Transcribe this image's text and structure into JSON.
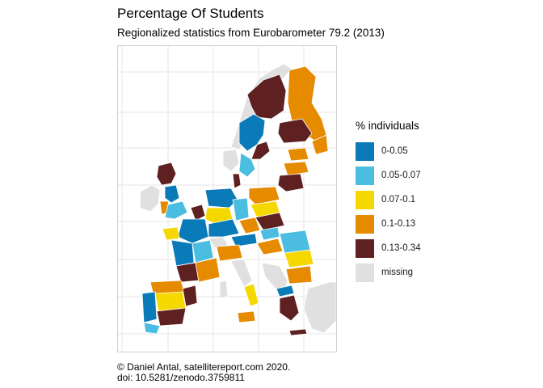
{
  "title": "Percentage Of Students",
  "subtitle": "Regionalized statistics from Eurobarometer 79.2 (2013)",
  "legend": {
    "title": "% individuals",
    "items": [
      {
        "label": "0-0.05",
        "color": "#0a7bb8"
      },
      {
        "label": "0.05-0.07",
        "color": "#4bbde0"
      },
      {
        "label": "0.07-0.1",
        "color": "#f5d800"
      },
      {
        "label": "0.1-0.13",
        "color": "#e68a00"
      },
      {
        "label": "0.13-0.34",
        "color": "#5e2020"
      },
      {
        "label": "missing",
        "color": "#e0e0e0"
      }
    ]
  },
  "caption": {
    "line1": "© Daniel Antal, satellitereport.com 2020.",
    "line2": "doi: 10.5281/zenodo.3759811"
  },
  "map_colors": {
    "grid": "#e6e6e6",
    "border": "#ffffff"
  },
  "regions": [
    {
      "name": "Iceland / Norway west",
      "class": "missing"
    },
    {
      "name": "Northern Finland",
      "class": "0.1-0.13"
    },
    {
      "name": "Northern Sweden",
      "class": "0.13-0.34"
    },
    {
      "name": "Central Sweden",
      "class": "0-0.05"
    },
    {
      "name": "Southern Finland",
      "class": "0.13-0.34"
    },
    {
      "name": "Stockholm",
      "class": "0.13-0.34"
    },
    {
      "name": "Southern Sweden",
      "class": "0-0.05"
    },
    {
      "name": "Baltics",
      "class": "0.1-0.13"
    },
    {
      "name": "Scotland",
      "class": "0.13-0.34"
    },
    {
      "name": "Ireland",
      "class": "missing"
    },
    {
      "name": "England",
      "class": "0.05-0.07"
    },
    {
      "name": "France",
      "class": "0-0.05"
    },
    {
      "name": "Iberia west",
      "class": "0-0.05"
    },
    {
      "name": "Iberia south",
      "class": "0.13-0.34"
    },
    {
      "name": "Italy",
      "class": "0.1-0.13"
    },
    {
      "name": "Germany",
      "class": "0-0.05"
    },
    {
      "name": "Poland",
      "class": "0.1-0.13"
    },
    {
      "name": "Balkans",
      "class": "missing"
    },
    {
      "name": "Romania",
      "class": "0.05-0.07"
    },
    {
      "name": "Greece",
      "class": "0.13-0.34"
    }
  ]
}
